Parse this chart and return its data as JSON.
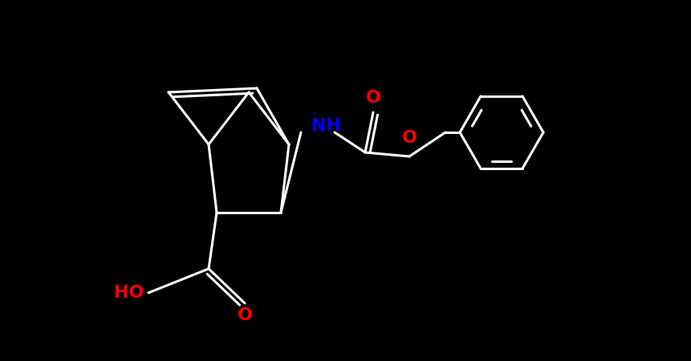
{
  "background_color": "#000000",
  "bond_color": "#ffffff",
  "N_color": "#0000ff",
  "O_color": "#ff0000",
  "bond_width": 2.2,
  "font_size": 16,
  "fig_width": 8.62,
  "fig_height": 4.5,
  "dpi": 100,
  "xlim": [
    0,
    8.62
  ],
  "ylim": [
    0,
    4.5
  ]
}
